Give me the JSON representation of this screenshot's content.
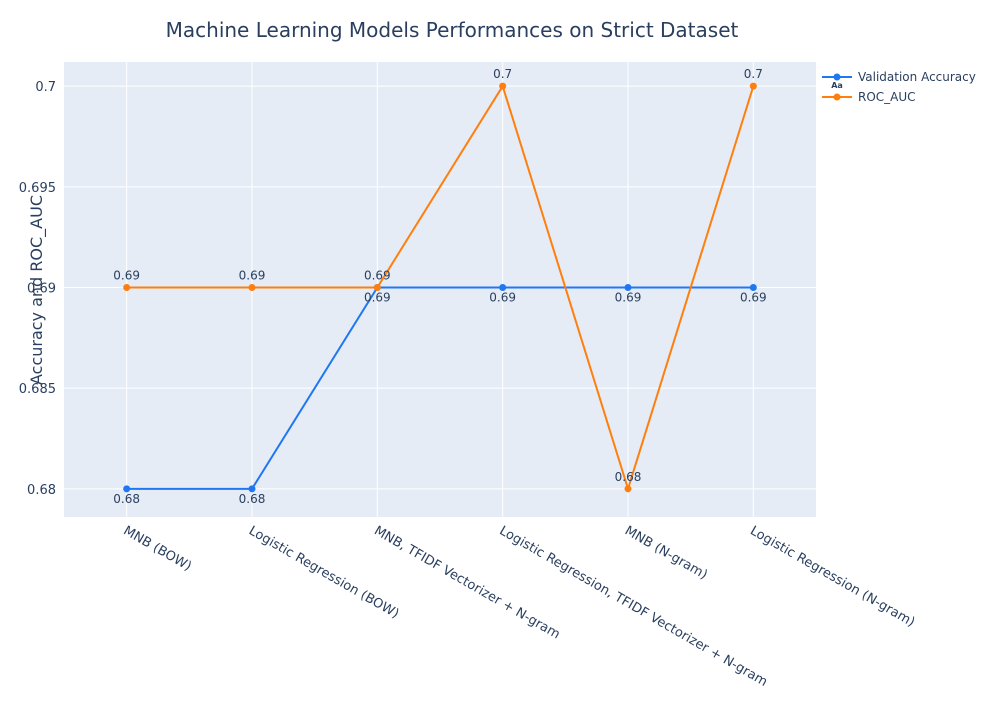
{
  "chart_data": {
    "type": "line",
    "title": "Machine Learning Models Performances on Strict Dataset",
    "xlabel": "",
    "ylabel": "Accuracy and ROC_AUC",
    "categories": [
      "MNB (BOW)",
      "Logistic Regression (BOW)",
      "MNB, TFIDF Vectorizer + N-gram",
      "Logistic Regression, TFIDF Vectorizer + N-gram",
      "MNB (N-gram)",
      "Logistic Regression (N-gram)"
    ],
    "series": [
      {
        "name": "Validation Accuracy",
        "color": "#1f77f4",
        "values": [
          0.68,
          0.68,
          0.69,
          0.69,
          0.69,
          0.69
        ],
        "labels": [
          "0.68",
          "0.68",
          "0.69",
          "0.69",
          "0.69",
          "0.69"
        ],
        "label_position": "below"
      },
      {
        "name": "ROC_AUC",
        "color": "#ff7f0e",
        "values": [
          0.69,
          0.69,
          0.69,
          0.7,
          0.68,
          0.7
        ],
        "labels": [
          "0.69",
          "0.69",
          "0.69",
          "0.7",
          "0.68",
          "0.7"
        ],
        "label_position": "above"
      }
    ],
    "yticks": [
      0.68,
      0.685,
      0.69,
      0.695,
      0.7
    ],
    "ytick_labels": [
      "0.68",
      "0.685",
      "0.69",
      "0.695",
      "0.7"
    ],
    "ylim": [
      0.6786,
      0.7012
    ],
    "grid": true,
    "legend": "top-right",
    "plot_bg": "#e5ecf6",
    "legend_marker_glyph": "Aa"
  }
}
